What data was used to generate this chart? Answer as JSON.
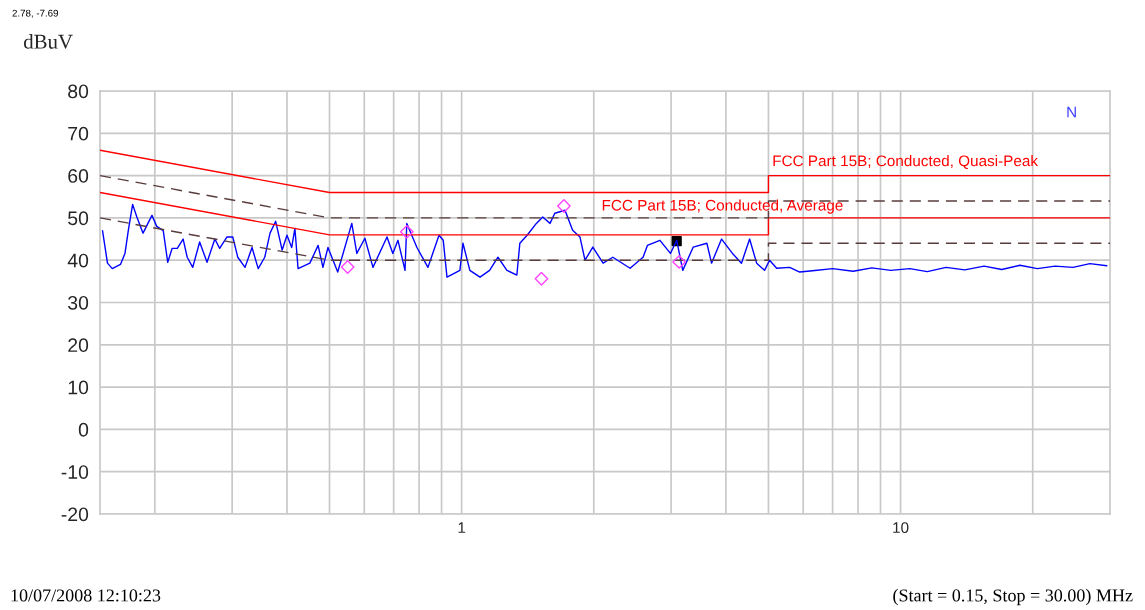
{
  "chart_data": {
    "type": "line",
    "ylabel": "dBuV",
    "log": "x",
    "xlim": [
      0.15,
      30
    ],
    "ylim": [
      -20,
      80
    ],
    "xticks": [
      {
        "value": 0.2,
        "label": null
      },
      {
        "value": 0.3,
        "label": null
      },
      {
        "value": 0.4,
        "label": null
      },
      {
        "value": 0.5,
        "label": null
      },
      {
        "value": 0.6,
        "label": null
      },
      {
        "value": 0.7,
        "label": null
      },
      {
        "value": 0.8,
        "label": null
      },
      {
        "value": 0.9,
        "label": null
      },
      1,
      {
        "value": 2,
        "label": null
      },
      {
        "value": 3,
        "label": null
      },
      {
        "value": 4,
        "label": null
      },
      {
        "value": 5,
        "label": null
      },
      {
        "value": 6,
        "label": null
      },
      {
        "value": 7,
        "label": null
      },
      {
        "value": 8,
        "label": null
      },
      {
        "value": 9,
        "label": null
      },
      10,
      {
        "value": 20,
        "label": null
      }
    ],
    "yticks": [
      -20,
      -10,
      0,
      10,
      20,
      30,
      40,
      50,
      60,
      70,
      80
    ],
    "grid": true,
    "legend": false,
    "annotations": [
      "2.78, -7.69",
      "N",
      "10/07/2008 12:10:23",
      "(Start = 0.15, Stop = 30.00) MHz"
    ],
    "series": [
      {
        "color": "#0000ff",
        "line_style": "solid",
        "x": [
          0.152,
          0.156,
          0.16,
          0.167,
          0.171,
          0.174,
          0.178,
          0.182,
          0.188,
          0.197,
          0.202,
          0.209,
          0.214,
          0.219,
          0.225,
          0.232,
          0.237,
          0.244,
          0.253,
          0.263,
          0.274,
          0.281,
          0.292,
          0.301,
          0.309,
          0.321,
          0.333,
          0.344,
          0.356,
          0.366,
          0.377,
          0.39,
          0.4,
          0.41,
          0.417,
          0.424,
          0.451,
          0.471,
          0.483,
          0.496,
          0.522,
          0.562,
          0.577,
          0.602,
          0.628,
          0.676,
          0.697,
          0.716,
          0.743,
          0.75,
          0.791,
          0.838,
          0.888,
          0.908,
          0.926,
          0.991,
          1.007,
          1.044,
          1.101,
          1.158,
          1.21,
          1.268,
          1.336,
          1.357,
          1.41,
          1.48,
          1.53,
          1.59,
          1.63,
          1.72,
          1.79,
          1.86,
          1.91,
          1.99,
          2.1,
          2.21,
          2.42,
          2.59,
          2.65,
          2.83,
          2.99,
          3.09,
          3.19,
          3.37,
          3.62,
          3.71,
          3.91,
          4.14,
          4.34,
          4.53,
          4.7,
          4.9,
          5.03,
          5.22,
          5.59,
          5.89,
          6.3,
          7.0,
          7.8,
          8.6,
          9.5,
          10.5,
          11.5,
          12.7,
          14.0,
          15.5,
          17.0,
          18.7,
          20.5,
          22.5,
          24.7,
          27.0,
          29.5
        ],
        "values": [
          47,
          39.3,
          38,
          39,
          41.6,
          47,
          53.2,
          50.2,
          46.4,
          50.6,
          48,
          47,
          39.5,
          42.8,
          42.8,
          45,
          40.7,
          38.3,
          44.3,
          39.5,
          45,
          42.8,
          45.5,
          45.5,
          40.7,
          38.3,
          43,
          38,
          40.7,
          46.4,
          49.2,
          42.4,
          45.9,
          43,
          47.5,
          38,
          39.3,
          43.5,
          38.3,
          43,
          37.2,
          48.7,
          41.6,
          45.2,
          38.3,
          45.5,
          41.6,
          44.7,
          37.6,
          48.7,
          43,
          38.3,
          45.9,
          44.7,
          36,
          37.6,
          44,
          37.6,
          36,
          37.6,
          40.7,
          37.6,
          36.5,
          44,
          45.9,
          48.7,
          50.2,
          48.7,
          51.1,
          51.8,
          47.1,
          45.5,
          40,
          43.1,
          39.3,
          40.7,
          38.1,
          40.7,
          43.5,
          44.7,
          41.6,
          44.7,
          37.6,
          43.1,
          44,
          39.3,
          45,
          41.6,
          39.3,
          45,
          39.3,
          37.6,
          40,
          38.1,
          38.3,
          37.2,
          37.5,
          38,
          37.4,
          38.2,
          37.6,
          38,
          37.3,
          38.3,
          37.7,
          38.6,
          37.8,
          38.8,
          38,
          38.6,
          38.3,
          39.2,
          38.7
        ]
      },
      {
        "name": "FCC Part 15B; Conducted, Quasi-Peak",
        "color": "#ff0000",
        "line_style": "solid",
        "x": [
          0.15,
          0.5,
          0.5,
          5,
          5,
          30
        ],
        "values": [
          66,
          56,
          56,
          56,
          60,
          60
        ]
      },
      {
        "name": "FCC Part 15B; Conducted, Average",
        "color": "#ff0000",
        "line_style": "solid",
        "x": [
          0.15,
          0.5,
          0.5,
          5,
          5,
          30
        ],
        "values": [
          56,
          46,
          46,
          46,
          50,
          50
        ]
      },
      {
        "color": "#5a3c3c",
        "line_style": "dashed",
        "x": [
          0.15,
          0.5,
          0.5,
          5,
          5,
          30
        ],
        "values": [
          60,
          50,
          50,
          50,
          54,
          54
        ]
      },
      {
        "color": "#5a3c3c",
        "line_style": "dashed",
        "x": [
          0.15,
          0.5,
          0.5,
          5,
          5,
          30
        ],
        "values": [
          50,
          40,
          40,
          40,
          44,
          44
        ]
      },
      {
        "type": "scatter",
        "color": "#ff44ff",
        "marker": "diamond",
        "x": [
          0.55,
          0.75,
          1.52,
          1.71,
          3.13
        ],
        "values": [
          38.4,
          46.7,
          35.6,
          52.8,
          39.6
        ]
      },
      {
        "type": "scatter",
        "color": "#000000",
        "marker": "square",
        "x": [
          3.09
        ],
        "values": [
          44.5
        ]
      }
    ]
  }
}
